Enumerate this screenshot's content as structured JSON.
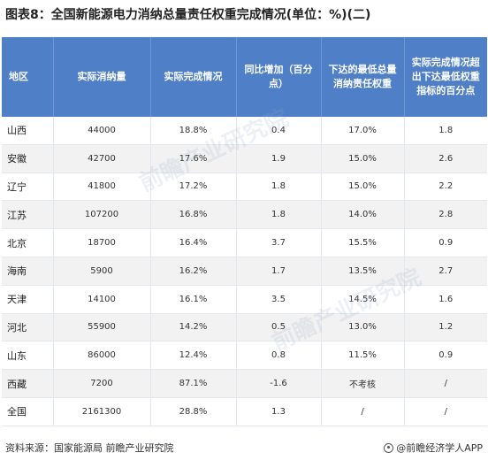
{
  "title": "图表8：全国新能源电力消纳总量责任权重完成情况(单位：%)(二)",
  "table": {
    "headers": [
      "地区",
      "实际消纳量",
      "实际完成情况",
      "同比增加（百分点）",
      "下达的最低总量消纳责任权重",
      "实际完成情况超出下达最低权重指标的百分点"
    ],
    "rows": [
      [
        "山西",
        "44000",
        "18.8%",
        "0.4",
        "17.0%",
        "1.8"
      ],
      [
        "安徽",
        "42700",
        "17.6%",
        "1.9",
        "15.0%",
        "2.6"
      ],
      [
        "辽宁",
        "41800",
        "17.2%",
        "1.8",
        "15.0%",
        "2.2"
      ],
      [
        "江苏",
        "107200",
        "16.8%",
        "1.8",
        "14.0%",
        "2.8"
      ],
      [
        "北京",
        "18700",
        "16.4%",
        "3.7",
        "15.5%",
        "0.9"
      ],
      [
        "海南",
        "5900",
        "16.2%",
        "1.7",
        "13.5%",
        "2.7"
      ],
      [
        "天津",
        "14100",
        "16.1%",
        "3.5",
        "14.5%",
        "1.6"
      ],
      [
        "河北",
        "55900",
        "14.2%",
        "0.5",
        "13.0%",
        "1.2"
      ],
      [
        "山东",
        "86000",
        "12.4%",
        "0.8",
        "11.5%",
        "0.9"
      ],
      [
        "西藏",
        "7200",
        "87.1%",
        "-1.6",
        "不考核",
        "/"
      ],
      [
        "全国",
        "2161300",
        "28.8%",
        "1.3",
        "/",
        "/"
      ]
    ]
  },
  "footer": {
    "source": "资料来源：国家能源局 前瞻产业研究院",
    "brand": "@前瞻经济学人APP"
  },
  "watermark": "前瞻产业研究院"
}
